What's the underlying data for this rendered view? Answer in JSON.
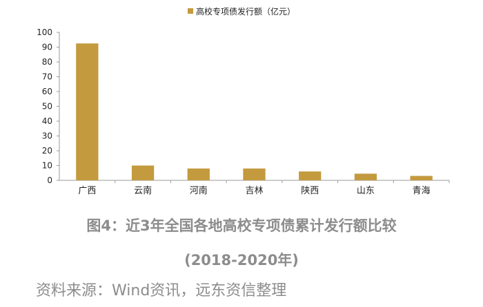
{
  "chart_data": {
    "type": "bar",
    "legend": "高校专项债发行额（亿元）",
    "categories": [
      "广西",
      "云南",
      "河南",
      "吉林",
      "陕西",
      "山东",
      "青海"
    ],
    "values": [
      92.5,
      10,
      8,
      8,
      6,
      4.5,
      3
    ],
    "ylim": [
      0,
      100
    ],
    "yticks": [
      0,
      10,
      20,
      30,
      40,
      50,
      60,
      70,
      80,
      90,
      100
    ],
    "color": "#C39A3E",
    "grid": false,
    "legend_position": "top-center"
  },
  "caption": {
    "line1": "图4：近3年全国各地高校专项债累计发行额比较",
    "line2": "(2018-2020年)"
  },
  "source": "资料来源：Wind资讯，远东资信整理"
}
